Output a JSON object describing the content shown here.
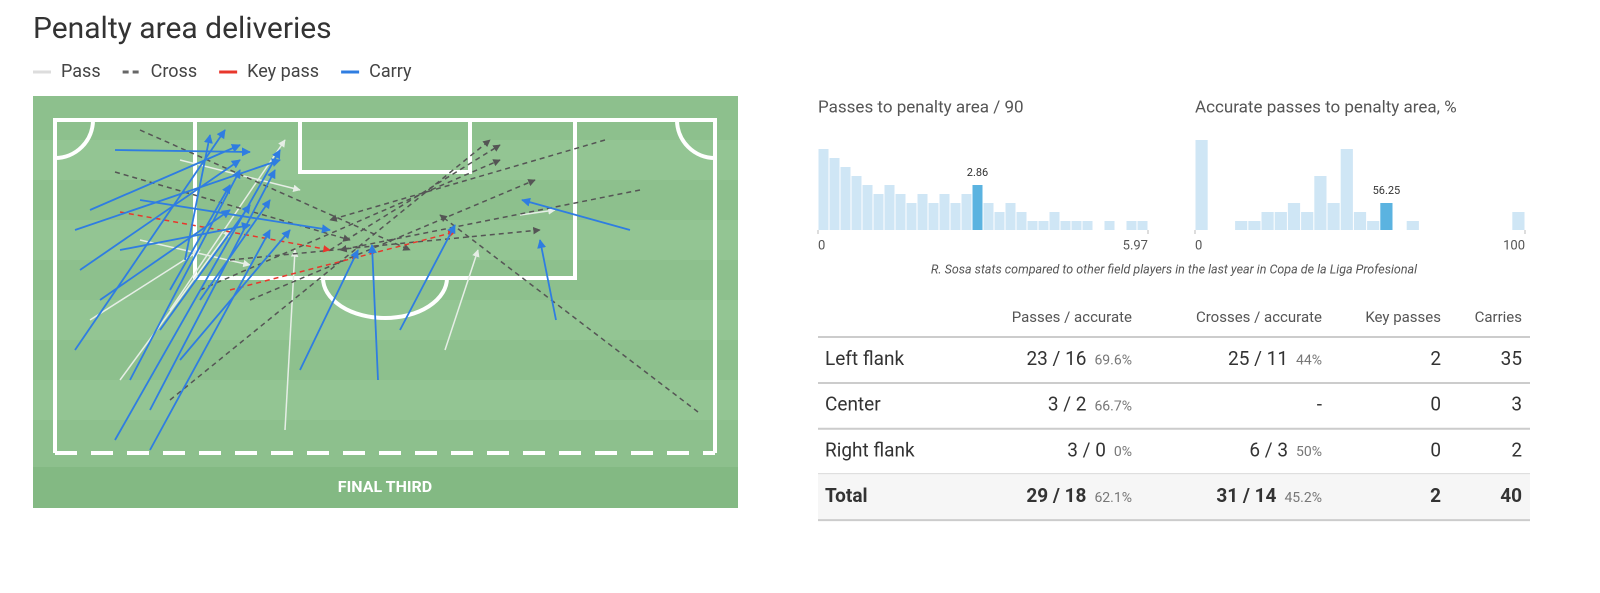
{
  "title": "Penalty area deliveries",
  "legend": [
    {
      "name": "Pass",
      "color": "#dddddd",
      "dash": false
    },
    {
      "name": "Cross",
      "color": "#666666",
      "dash": true
    },
    {
      "name": "Key pass",
      "color": "#e8372c",
      "dash": false
    },
    {
      "name": "Carry",
      "color": "#2f7de1",
      "dash": false
    }
  ],
  "pitch_label": "FINAL THIRD",
  "chart_data": [
    {
      "type": "histogram",
      "title": "Passes to penalty area / 90",
      "bins": [
        0,
        0.199,
        0.398,
        0.597,
        0.796,
        0.995,
        1.194,
        1.393,
        1.592,
        1.791,
        1.99,
        2.189,
        2.388,
        2.587,
        2.786,
        2.985,
        3.184,
        3.383,
        3.582,
        3.781,
        3.98,
        4.179,
        4.378,
        4.577,
        4.776,
        4.975,
        5.174,
        5.373,
        5.572,
        5.771,
        5.97
      ],
      "values": [
        9,
        8,
        7,
        6,
        5,
        4,
        5,
        4,
        3,
        4,
        3,
        4,
        3,
        4,
        5,
        3,
        2,
        3,
        2,
        1,
        1,
        2,
        1,
        1,
        1,
        0,
        1,
        0,
        1,
        1
      ],
      "ylim": [
        0,
        10
      ],
      "xlim": [
        0,
        5.97
      ],
      "xticks": [
        0,
        5.97
      ],
      "highlight": 2.86,
      "color": "#cfe6f5",
      "highlight_color": "#5bb3e0"
    },
    {
      "type": "histogram",
      "title": "Accurate passes to penalty area, %",
      "bins": [
        0,
        4,
        8,
        12,
        16,
        20,
        24,
        28,
        32,
        36,
        40,
        44,
        48,
        52,
        56,
        60,
        64,
        68,
        72,
        76,
        80,
        84,
        88,
        92,
        96,
        100
      ],
      "values": [
        10,
        0,
        0,
        1,
        1,
        2,
        2,
        3,
        2,
        6,
        3,
        9,
        2,
        1,
        3,
        0,
        1,
        0,
        0,
        0,
        0,
        0,
        0,
        0,
        2
      ],
      "ylim": [
        0,
        10
      ],
      "xlim": [
        0,
        100
      ],
      "xticks": [
        0,
        100
      ],
      "highlight": 56.25,
      "color": "#cfe6f5",
      "highlight_color": "#5bb3e0"
    }
  ],
  "note": "R. Sosa stats compared to other field players in the last year in Copa de la Liga Profesional",
  "table": {
    "columns": [
      "Passes / accurate",
      "Crosses / accurate",
      "Key passes",
      "Carries"
    ],
    "rows": [
      {
        "label": "Left flank",
        "passes": "23 / 16",
        "passes_pct": "69.6%",
        "crosses": "25 / 11",
        "crosses_pct": "44%",
        "key_passes": 2,
        "carries": 35
      },
      {
        "label": "Center",
        "passes": "3 / 2",
        "passes_pct": "66.7%",
        "crosses": "-",
        "key_passes": 0,
        "carries": 3
      },
      {
        "label": "Right flank",
        "passes": "3 / 0",
        "passes_pct": "0%",
        "crosses": "6 / 3",
        "crosses_pct": "50%",
        "key_passes": 0,
        "carries": 2
      },
      {
        "label": "Total",
        "passes": "29 / 18",
        "passes_pct": "62.1%",
        "crosses": "31 / 14",
        "crosses_pct": "45.2%",
        "key_passes": 2,
        "carries": 40
      }
    ]
  }
}
